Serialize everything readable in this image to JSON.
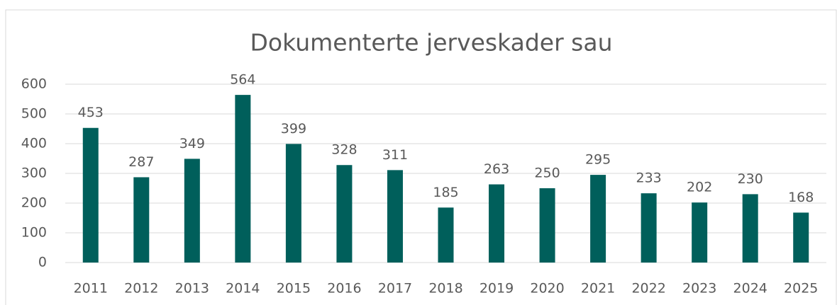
{
  "chart_data": {
    "type": "bar",
    "title": "Dokumenterte jerveskader sau",
    "categories": [
      "2011",
      "2012",
      "2013",
      "2014",
      "2015",
      "2016",
      "2017",
      "2018",
      "2019",
      "2020",
      "2021",
      "2022",
      "2023",
      "2024",
      "2025"
    ],
    "values": [
      453,
      287,
      349,
      564,
      399,
      328,
      311,
      185,
      263,
      250,
      295,
      233,
      202,
      230,
      168
    ],
    "color": "#005f5b",
    "ylim": [
      0,
      600
    ],
    "yticks": [
      0,
      100,
      200,
      300,
      400,
      500,
      600
    ],
    "grid": true
  }
}
